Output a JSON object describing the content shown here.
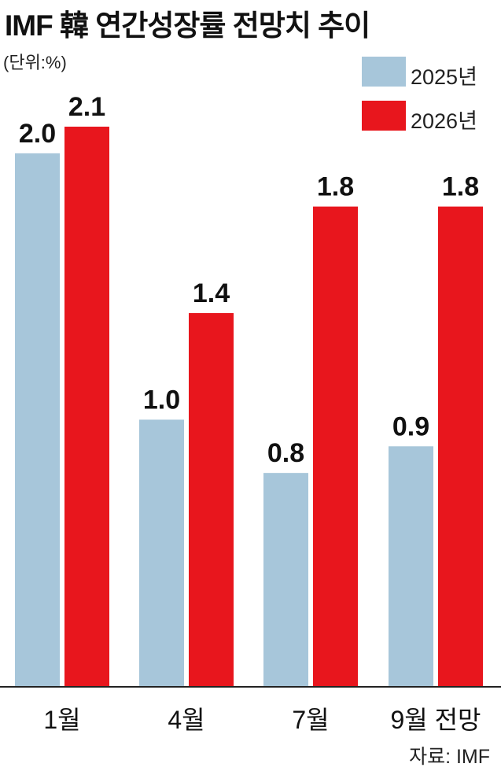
{
  "title": "IMF 韓 연간성장률 전망치 추이",
  "unit": "(단위:%)",
  "source": "자료: IMF",
  "chart_data": {
    "type": "bar",
    "categories": [
      "1월",
      "4월",
      "7월",
      "9월 전망"
    ],
    "series": [
      {
        "name": "2025년",
        "values": [
          2.0,
          1.0,
          0.8,
          0.9
        ],
        "color": "#a7c6da"
      },
      {
        "name": "2026년",
        "values": [
          2.1,
          1.4,
          1.8,
          1.8
        ],
        "color": "#e8161d"
      }
    ],
    "ylim": [
      0,
      2.1
    ],
    "grid": false,
    "legend": "top-right"
  }
}
